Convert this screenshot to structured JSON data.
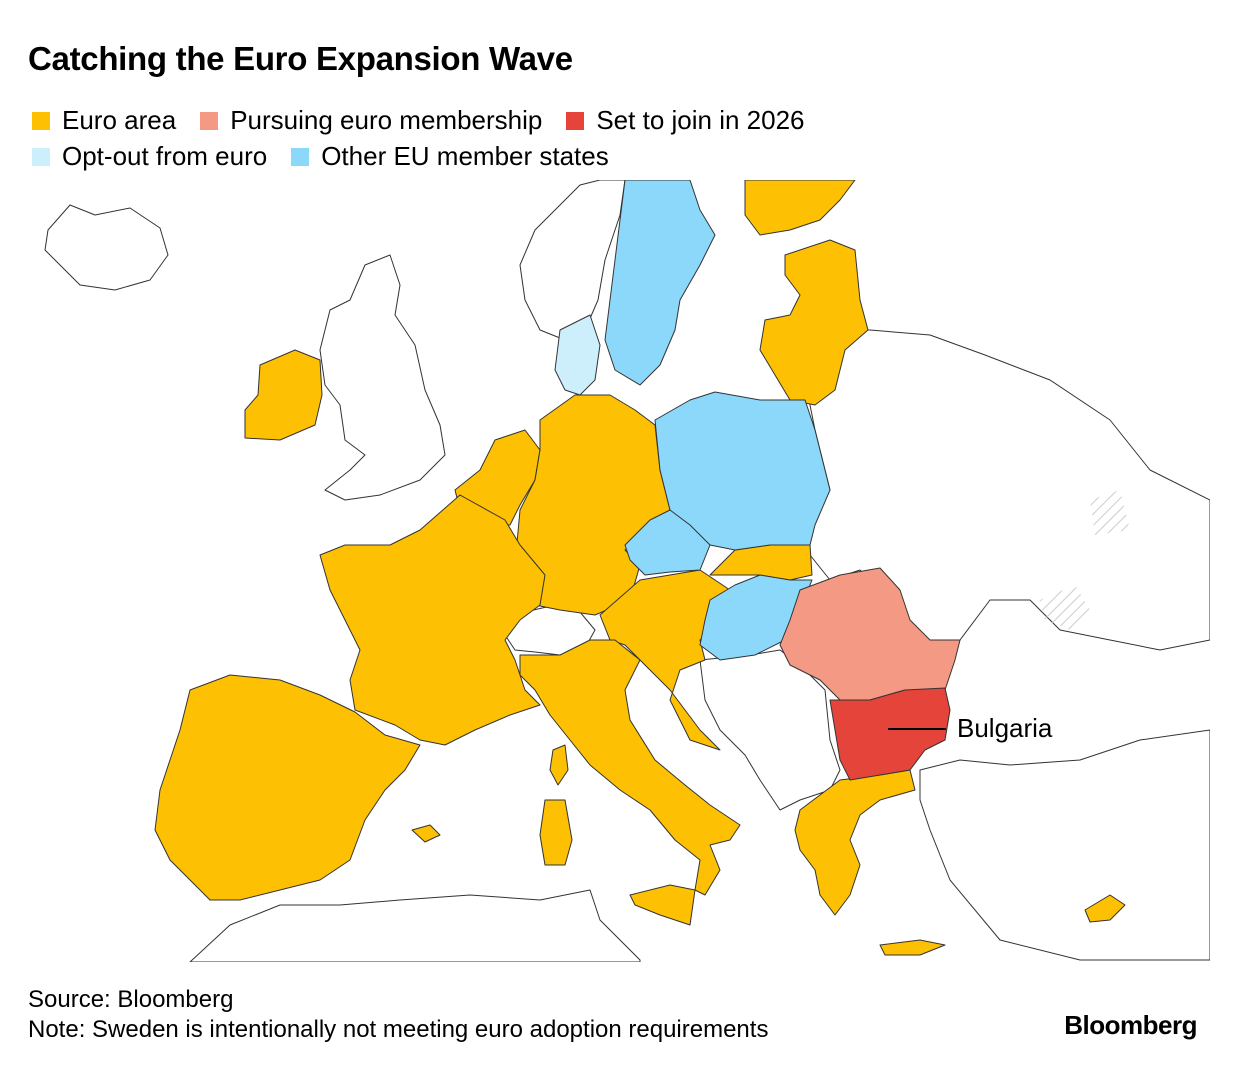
{
  "title": "Catching the Euro Expansion Wave",
  "legend": [
    {
      "label": "Euro area",
      "color": "#fdc002"
    },
    {
      "label": "Pursuing euro membership",
      "color": "#f49a84"
    },
    {
      "label": "Set to join in 2026",
      "color": "#e5443a"
    },
    {
      "label": "Opt-out from euro",
      "color": "#cdeefb"
    },
    {
      "label": "Other EU member states",
      "color": "#8cd8fb"
    }
  ],
  "annotation": {
    "label": "Bulgaria"
  },
  "footer": {
    "source": "Source: Bloomberg",
    "note": "Note: Sweden is intentionally not meeting euro adoption requirements"
  },
  "logo": "Bloomberg"
}
